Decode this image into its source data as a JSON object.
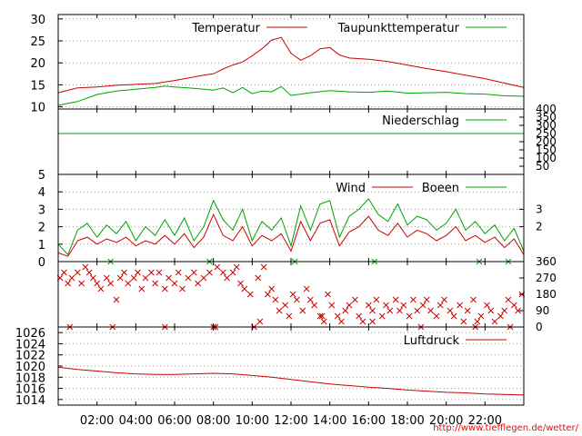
{
  "credit": "http://www.tiefflegen.de/wetter/",
  "x_ticks": [
    "02:00",
    "04:00",
    "06:00",
    "08:00",
    "10:00",
    "12:00",
    "14:00",
    "16:00",
    "18:00",
    "20:00",
    "22:00"
  ],
  "colors": {
    "red": "#cc0000",
    "green": "#00a000",
    "grid": "#999999"
  },
  "chart_data": [
    {
      "type": "line",
      "title": "",
      "x_unit": "hours",
      "xlim": [
        0,
        24
      ],
      "ylim": [
        9.5,
        31
      ],
      "y_ticks": [
        10,
        15,
        20,
        25,
        30
      ],
      "legend_placement": "top-right",
      "series": [
        {
          "name": "Temperatur",
          "color": "#cc0000",
          "x": [
            0,
            1,
            2,
            3,
            4,
            5,
            6,
            7,
            7.5,
            8,
            8.5,
            9,
            9.5,
            10,
            10.5,
            11,
            11.5,
            12,
            12.5,
            13,
            13.5,
            14,
            14.5,
            15,
            16,
            17,
            18,
            19,
            20,
            21,
            22,
            23,
            24
          ],
          "y": [
            13.2,
            14.3,
            14.5,
            14.9,
            15.1,
            15.3,
            16,
            16.8,
            17.2,
            17.5,
            18.6,
            19.5,
            20.2,
            21.6,
            23.2,
            25.2,
            25.8,
            22.2,
            20.6,
            21.6,
            23.2,
            23.5,
            21.8,
            21.1,
            20.8,
            20.3,
            19.5,
            18.7,
            18,
            17.2,
            16.4,
            15.4,
            14.4
          ]
        },
        {
          "name": "Taupunkttemperatur",
          "color": "#00a000",
          "x": [
            0,
            0.5,
            1,
            2,
            3,
            4,
            5,
            5.5,
            6,
            7,
            8,
            8.5,
            9,
            9.5,
            10,
            10.5,
            11,
            11.5,
            12,
            12.5,
            13,
            14,
            15,
            16,
            17,
            18,
            19,
            20,
            21,
            22,
            23,
            24
          ],
          "y": [
            10.3,
            10.8,
            11.2,
            12.8,
            13.6,
            14,
            14.4,
            14.7,
            14.5,
            14.2,
            13.8,
            14.3,
            13.2,
            14.4,
            13,
            13.6,
            13.4,
            14.6,
            12.6,
            12.9,
            13.2,
            13.7,
            13.4,
            13.3,
            13.6,
            13.1,
            13.2,
            13.3,
            13,
            12.9,
            12.5,
            12.4
          ]
        }
      ]
    },
    {
      "type": "line",
      "title": "",
      "xlim": [
        0,
        24
      ],
      "ylim": [
        0,
        400
      ],
      "y_ticks_right": [
        50,
        100,
        150,
        200,
        250,
        300,
        350,
        400
      ],
      "series": [
        {
          "name": "Niederschlag",
          "color": "#00a000",
          "x": [
            0,
            24
          ],
          "y": [
            250,
            250
          ]
        }
      ]
    },
    {
      "type": "line",
      "title": "",
      "xlim": [
        0,
        24
      ],
      "ylim": [
        0,
        5
      ],
      "y_ticks": [
        0,
        1,
        2,
        3,
        4,
        5
      ],
      "y_ticks_right": [
        2,
        3
      ],
      "series": [
        {
          "name": "Wind",
          "color": "#cc0000",
          "x": [
            0,
            0.5,
            1,
            1.5,
            2,
            2.5,
            3,
            3.5,
            4,
            4.5,
            5,
            5.5,
            6,
            6.5,
            7,
            7.5,
            8,
            8.5,
            9,
            9.5,
            10,
            10.5,
            11,
            11.5,
            12,
            12.5,
            13,
            13.5,
            14,
            14.5,
            15,
            15.5,
            16,
            16.5,
            17,
            17.5,
            18,
            18.5,
            19,
            19.5,
            20,
            20.5,
            21,
            21.5,
            22,
            22.5,
            23,
            23.5,
            24
          ],
          "y": [
            0.5,
            0.3,
            1.2,
            1.4,
            1,
            1.3,
            1.1,
            1.4,
            0.9,
            1.2,
            1,
            1.5,
            1,
            1.6,
            0.8,
            1.4,
            2.7,
            1.5,
            1.2,
            2,
            0.9,
            1.5,
            1.2,
            1.6,
            0.6,
            2.3,
            1.2,
            2.2,
            2.4,
            0.9,
            1.7,
            2,
            2.6,
            1.8,
            1.5,
            2.2,
            1.4,
            1.8,
            1.6,
            1.2,
            1.5,
            2,
            1.2,
            1.5,
            1.1,
            1.4,
            0.8,
            1.3,
            0.4
          ]
        },
        {
          "name": "Boeen",
          "color": "#00a000",
          "x": [
            0,
            0.5,
            1,
            1.5,
            2,
            2.5,
            3,
            3.5,
            4,
            4.5,
            5,
            5.5,
            6,
            6.5,
            7,
            7.5,
            8,
            8.5,
            9,
            9.5,
            10,
            10.5,
            11,
            11.5,
            12,
            12.5,
            13,
            13.5,
            14,
            14.5,
            15,
            15.5,
            16,
            16.5,
            17,
            17.5,
            18,
            18.5,
            19,
            19.5,
            20,
            20.5,
            21,
            21.5,
            22,
            22.5,
            23,
            23.5,
            24
          ],
          "y": [
            1,
            0.4,
            1.8,
            2.2,
            1.4,
            2.1,
            1.6,
            2.3,
            1.2,
            2,
            1.5,
            2.4,
            1.5,
            2.5,
            1.2,
            2,
            3.5,
            2.4,
            1.8,
            3,
            1.2,
            2.3,
            1.8,
            2.5,
            0.9,
            3.2,
            1.8,
            3.3,
            3.5,
            1.4,
            2.6,
            3,
            3.6,
            2.7,
            2.3,
            3.3,
            2.1,
            2.6,
            2.4,
            1.8,
            2.2,
            3,
            1.8,
            2.3,
            1.6,
            2.1,
            1.2,
            1.9,
            0.6
          ]
        }
      ]
    },
    {
      "type": "scatter",
      "title": "",
      "xlim": [
        0,
        24
      ],
      "ylim": [
        0,
        360
      ],
      "y_ticks_right": [
        0,
        90,
        180,
        270,
        360
      ],
      "series": [
        {
          "name": "",
          "color": "#cc0000",
          "marker": "x",
          "x": [
            0.1,
            0.3,
            0.5,
            0.7,
            1,
            1.2,
            1.4,
            1.6,
            1.8,
            2,
            2.2,
            2.5,
            2.7,
            3,
            3.2,
            3.4,
            3.6,
            3.9,
            4.1,
            4.3,
            4.5,
            4.8,
            5,
            5.2,
            5.5,
            5.7,
            6,
            6.2,
            6.4,
            6.7,
            7,
            7.2,
            7.5,
            7.8,
            8,
            8.2,
            8.5,
            8.7,
            9,
            9.2,
            9.4,
            9.6,
            9.9,
            10.1,
            10.3,
            10.6,
            10.8,
            11,
            11.2,
            11.4,
            11.7,
            11.9,
            12.1,
            12.3,
            12.6,
            12.8,
            13,
            13.2,
            13.5,
            13.7,
            13.9,
            14.1,
            14.4,
            14.6,
            14.8,
            15,
            15.3,
            15.5,
            15.7,
            16,
            16.2,
            16.4,
            16.7,
            16.9,
            17.1,
            17.4,
            17.6,
            17.8,
            18.1,
            18.3,
            18.5,
            18.8,
            19,
            19.2,
            19.5,
            19.7,
            19.9,
            20.2,
            20.4,
            20.7,
            20.9,
            21.1,
            21.4,
            21.6,
            21.8,
            22.1,
            22.3,
            22.5,
            22.8,
            23,
            23.2,
            23.5,
            23.7,
            23.9,
            0.6,
            2.8,
            5.5,
            8.1,
            10.4,
            13.6,
            16.2,
            18.7,
            21.5,
            23.3
          ],
          "y": [
            270,
            300,
            240,
            270,
            300,
            240,
            330,
            300,
            270,
            240,
            210,
            270,
            240,
            150,
            270,
            300,
            240,
            270,
            300,
            210,
            270,
            300,
            240,
            300,
            210,
            270,
            240,
            300,
            210,
            270,
            300,
            240,
            270,
            300,
            0,
            330,
            300,
            270,
            300,
            330,
            240,
            210,
            180,
            0,
            270,
            330,
            180,
            210,
            150,
            90,
            120,
            60,
            180,
            150,
            90,
            210,
            150,
            120,
            60,
            30,
            180,
            120,
            60,
            30,
            90,
            120,
            150,
            60,
            30,
            120,
            90,
            150,
            60,
            120,
            90,
            150,
            90,
            120,
            60,
            150,
            90,
            120,
            150,
            90,
            60,
            120,
            150,
            90,
            60,
            120,
            30,
            90,
            150,
            30,
            60,
            120,
            90,
            30,
            60,
            90,
            150,
            120,
            90,
            180,
            0,
            0,
            0,
            0,
            30,
            60,
            30,
            0,
            0,
            0
          ]
        },
        {
          "name": "",
          "color": "#00a000",
          "marker": "x",
          "x": [
            2.7,
            7.8,
            12.2,
            16.3,
            21.7,
            23.2
          ],
          "y": [
            360,
            360,
            360,
            360,
            360,
            360
          ]
        }
      ]
    },
    {
      "type": "line",
      "title": "",
      "xlim": [
        0,
        24
      ],
      "ylim": [
        1013,
        1027
      ],
      "y_ticks": [
        1014,
        1016,
        1018,
        1020,
        1022,
        1024,
        1026
      ],
      "series": [
        {
          "name": "Luftdruck",
          "color": "#cc0000",
          "x": [
            0,
            1,
            2,
            3,
            4,
            5,
            6,
            7,
            8,
            9,
            10,
            11,
            12,
            13,
            14,
            15,
            16,
            17,
            18,
            19,
            20,
            21,
            22,
            23,
            24
          ],
          "y": [
            1019.8,
            1019.4,
            1019.1,
            1018.8,
            1018.6,
            1018.5,
            1018.5,
            1018.6,
            1018.7,
            1018.6,
            1018.3,
            1018.0,
            1017.6,
            1017.2,
            1016.8,
            1016.5,
            1016.2,
            1016.0,
            1015.7,
            1015.5,
            1015.3,
            1015.2,
            1015.0,
            1014.9,
            1014.8
          ]
        }
      ]
    }
  ]
}
